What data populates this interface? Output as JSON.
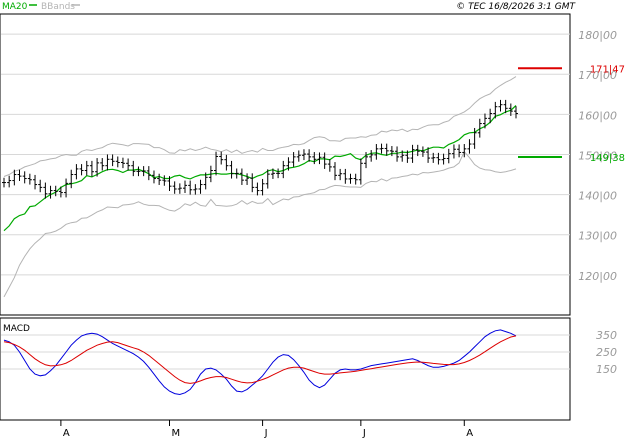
{
  "header": {
    "ma_label": "MA20",
    "bb_label": "BBands",
    "copyright": "© TEC 16/8/2026 3:1 GMT"
  },
  "colors": {
    "price_bars": "#000000",
    "ma20": "#00aa00",
    "bbands": "#b4b4b4",
    "resistance": "#dd0000",
    "support": "#00aa00",
    "macd": "#0000dd",
    "signal": "#dd0000",
    "grid": "#d8d8d8",
    "axis_text": "#999999"
  },
  "chart_data": [
    {
      "type": "ohlc",
      "name": "price",
      "x_labels": [
        "A",
        "M",
        "J",
        "J",
        "A"
      ],
      "x_label_index": [
        11,
        32,
        50,
        69,
        89
      ],
      "n_periods": 100,
      "ylim": [
        110,
        185
      ],
      "yticks": [
        120,
        130,
        140,
        150,
        160,
        170,
        180
      ],
      "ytick_labels": [
        "120|00",
        "130|00",
        "140|00",
        "150|00",
        "160|00",
        "170|00",
        "180|00"
      ],
      "grid": true,
      "legend": "top-left",
      "close": [
        143.0,
        143.5,
        145.0,
        144.6,
        144.0,
        143.7,
        142.5,
        141.8,
        140.2,
        141.0,
        140.8,
        140.5,
        142.8,
        145.0,
        146.4,
        146.0,
        147.2,
        145.7,
        147.9,
        147.2,
        148.8,
        148.3,
        148.0,
        147.8,
        147.2,
        145.8,
        145.8,
        145.9,
        144.8,
        144.0,
        143.6,
        143.4,
        142.1,
        141.4,
        141.6,
        142.3,
        141.2,
        141.4,
        142.5,
        144.3,
        146.0,
        149.5,
        148.7,
        147.2,
        145.2,
        145.3,
        143.6,
        144.1,
        141.8,
        141.0,
        142.7,
        145.1,
        145.3,
        145.3,
        147.2,
        148.1,
        149.4,
        149.8,
        150.1,
        149.4,
        148.8,
        149.3,
        147.6,
        146.9,
        144.8,
        145.2,
        143.9,
        144.0,
        143.7,
        147.8,
        149.4,
        149.9,
        151.4,
        151.5,
        150.9,
        150.8,
        149.4,
        149.8,
        149.1,
        151.2,
        150.8,
        150.6,
        149.1,
        149.2,
        148.7,
        149.0,
        150.2,
        151.3,
        150.5,
        151.4,
        152.6,
        155.4,
        157.7,
        159.0,
        160.2,
        161.9,
        162.4,
        161.5,
        160.8,
        160.2
      ],
      "ma20": [
        131.0,
        132.2,
        134.0,
        134.8,
        135.2,
        137.0,
        137.2,
        138.2,
        139.2,
        140.0,
        140.6,
        141.8,
        142.5,
        142.7,
        143.0,
        143.5,
        144.7,
        144.4,
        145.0,
        145.7,
        146.2,
        146.3,
        146.0,
        145.5,
        146.1,
        146.1,
        146.3,
        145.8,
        145.2,
        144.2,
        144.5,
        144.0,
        144.0,
        144.6,
        144.8,
        144.2,
        143.9,
        144.5,
        144.9,
        144.9,
        145.1,
        145.3,
        145.1,
        145.1,
        145.3,
        145.2,
        144.9,
        144.5,
        144.0,
        144.6,
        145.0,
        145.9,
        146.2,
        145.7,
        146.0,
        146.6,
        146.8,
        147.1,
        147.7,
        148.5,
        148.2,
        148.9,
        148.9,
        148.7,
        149.6,
        149.5,
        149.8,
        150.2,
        149.1,
        148.7,
        149.8,
        150.3,
        150.4,
        150.0,
        149.8,
        150.3,
        150.3,
        150.6,
        150.5,
        150.8,
        151.1,
        150.9,
        151.4,
        151.8,
        151.8,
        151.6,
        152.5,
        153.0,
        153.7,
        154.9,
        155.4,
        155.5,
        156.4,
        157.0,
        158.0,
        159.5,
        159.9,
        160.6,
        161.0,
        162.2
      ],
      "bb_upper": [
        144.5,
        145.0,
        145.8,
        146.2,
        146.9,
        147.3,
        147.7,
        148.4,
        148.6,
        148.9,
        149.1,
        149.7,
        150.0,
        149.8,
        149.8,
        150.8,
        151.2,
        151.0,
        151.4,
        151.7,
        152.4,
        152.8,
        152.6,
        152.4,
        152.1,
        152.7,
        152.7,
        152.6,
        152.5,
        151.7,
        151.7,
        151.2,
        150.4,
        150.3,
        151.2,
        150.9,
        151.4,
        151.0,
        151.3,
        151.8,
        151.3,
        151.1,
        150.7,
        151.2,
        150.5,
        151.1,
        150.3,
        150.7,
        151.0,
        150.6,
        151.5,
        151.0,
        151.0,
        151.5,
        151.8,
        152.0,
        152.5,
        152.4,
        152.7,
        153.5,
        154.2,
        154.4,
        154.2,
        153.4,
        153.4,
        153.3,
        154.0,
        154.1,
        154.1,
        154.4,
        154.3,
        154.8,
        154.9,
        155.8,
        155.6,
        156.1,
        155.9,
        156.3,
        155.7,
        156.3,
        156.2,
        156.8,
        157.3,
        157.4,
        157.4,
        158.0,
        158.4,
        159.5,
        160.0,
        160.6,
        161.5,
        162.8,
        163.9,
        164.6,
        165.1,
        166.3,
        167.2,
        168.0,
        168.6,
        169.4
      ],
      "bb_lower": [
        114.5,
        116.9,
        119.3,
        122.4,
        124.6,
        126.5,
        127.9,
        129.0,
        130.3,
        130.5,
        130.9,
        131.6,
        132.6,
        133.0,
        133.2,
        134.1,
        134.2,
        134.9,
        135.7,
        136.2,
        136.9,
        136.8,
        136.7,
        137.4,
        137.5,
        137.7,
        138.2,
        137.6,
        137.3,
        137.3,
        137.2,
        136.6,
        136.1,
        135.9,
        136.6,
        137.7,
        137.3,
        138.1,
        137.3,
        137.1,
        138.8,
        137.3,
        137.2,
        137.1,
        137.2,
        137.6,
        138.5,
        137.6,
        138.3,
        137.8,
        137.9,
        139.0,
        137.5,
        138.2,
        138.9,
        138.7,
        139.4,
        139.5,
        140.0,
        140.2,
        140.5,
        141.2,
        141.3,
        141.9,
        142.3,
        142.2,
        142.0,
        141.9,
        141.9,
        141.8,
        142.8,
        143.3,
        143.2,
        143.9,
        143.4,
        144.1,
        144.2,
        144.5,
        144.7,
        145.1,
        144.9,
        145.5,
        145.4,
        145.6,
        145.8,
        146.1,
        146.6,
        146.9,
        147.9,
        150.7,
        149.2,
        147.5,
        146.6,
        146.2,
        146.1,
        145.7,
        145.5,
        145.7,
        146.0,
        146.4
      ],
      "resistance": {
        "value": 171.47,
        "label": "171|47"
      },
      "support": {
        "value": 149.38,
        "label": "149|38"
      }
    },
    {
      "type": "line",
      "name": "MACD",
      "title": "MACD",
      "ylim": [
        -150,
        450
      ],
      "yticks": [
        150,
        250,
        350
      ],
      "ytick_labels": [
        "150",
        "250",
        "350"
      ],
      "series": [
        {
          "role": "macd",
          "values": [
            320,
            310,
            290,
            250,
            200,
            150,
            120,
            110,
            115,
            140,
            170,
            210,
            250,
            290,
            320,
            345,
            355,
            360,
            355,
            340,
            320,
            300,
            285,
            270,
            255,
            240,
            220,
            195,
            160,
            120,
            80,
            45,
            20,
            5,
            0,
            10,
            30,
            70,
            120,
            150,
            155,
            145,
            120,
            90,
            50,
            20,
            15,
            30,
            55,
            80,
            110,
            150,
            190,
            220,
            235,
            230,
            205,
            170,
            130,
            85,
            55,
            40,
            55,
            90,
            125,
            145,
            150,
            145,
            145,
            150,
            160,
            170,
            175,
            180,
            185,
            190,
            195,
            200,
            205,
            210,
            200,
            185,
            170,
            160,
            160,
            165,
            175,
            185,
            200,
            225,
            250,
            280,
            310,
            340,
            360,
            375,
            380,
            370,
            360,
            345
          ]
        },
        {
          "role": "signal",
          "values": [
            310,
            305,
            295,
            280,
            260,
            235,
            210,
            190,
            175,
            168,
            170,
            175,
            185,
            200,
            220,
            240,
            260,
            275,
            290,
            300,
            308,
            310,
            305,
            295,
            285,
            275,
            265,
            250,
            230,
            205,
            180,
            155,
            130,
            105,
            85,
            70,
            65,
            70,
            80,
            92,
            100,
            105,
            105,
            100,
            90,
            80,
            72,
            68,
            70,
            78,
            88,
            100,
            115,
            130,
            145,
            155,
            160,
            160,
            155,
            145,
            135,
            125,
            120,
            120,
            123,
            127,
            130,
            133,
            137,
            142,
            147,
            152,
            157,
            162,
            167,
            172,
            177,
            182,
            186,
            189,
            191,
            190,
            187,
            183,
            180,
            177,
            176,
            176,
            180,
            188,
            200,
            215,
            232,
            252,
            272,
            292,
            310,
            325,
            338,
            345
          ]
        }
      ]
    }
  ]
}
